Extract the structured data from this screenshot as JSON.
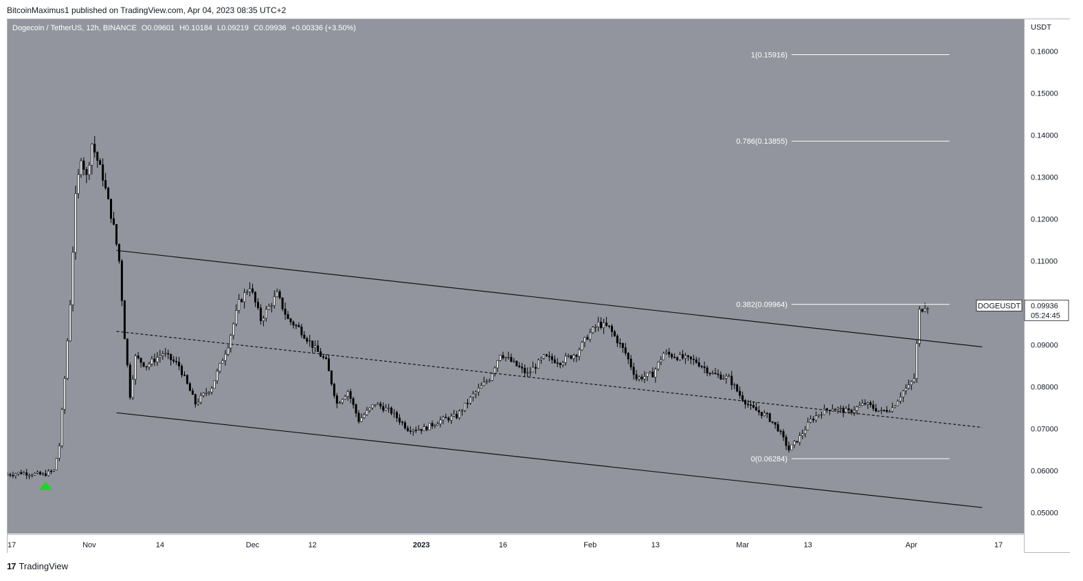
{
  "publisher": "BitcoinMaximus1 published on TradingView.com, Apr 04, 2023 08:35 UTC+2",
  "symbol": {
    "title": "Dogecoin / TetherUS, 12h, BINANCE",
    "open": "O0.09601",
    "high": "H0.10184",
    "low": "L0.09219",
    "close": "C0.09936",
    "change": "+0.00336 (+3.50%)"
  },
  "axis_unit": "USDT",
  "price_tag": {
    "symbol": "DOGEUSDT",
    "price": "0.09936",
    "countdown": "05:24:45"
  },
  "footer": {
    "logo": "17",
    "brand": "TradingView"
  },
  "colors": {
    "background": "#92959d",
    "candle": "#000000",
    "fib_line": "#ffffff",
    "marker": "#22d12a"
  },
  "chart_data": {
    "type": "candlestick",
    "title": "Dogecoin / TetherUS, 12h, BINANCE",
    "ylabel": "USDT",
    "ylim": [
      0.045,
      0.1676
    ],
    "y_ticks": [
      "0.05000",
      "0.06000",
      "0.07000",
      "0.08000",
      "0.09000",
      "0.10000",
      "0.11000",
      "0.12000",
      "0.13000",
      "0.14000",
      "0.15000",
      "0.16000"
    ],
    "x_ticks": [
      "17",
      "Nov",
      "14",
      "Dec",
      "12",
      "2023",
      "16",
      "Feb",
      "13",
      "Mar",
      "13",
      "Apr",
      "17"
    ],
    "x_tick_values": [
      "2022-10-17",
      "2022-11-01",
      "2022-11-14",
      "2022-12-01",
      "2022-12-12",
      "2023-01-01",
      "2023-01-16",
      "2023-02-01",
      "2023-02-13",
      "2023-03-01",
      "2023-03-13",
      "2023-04-01",
      "2023-04-17"
    ],
    "fibonacci": [
      {
        "label": "1(0.15916)",
        "value": 0.15916
      },
      {
        "label": "0.786(0.13855)",
        "value": 0.13855
      },
      {
        "label": "0.382(0.09964)",
        "value": 0.09964
      },
      {
        "label": "0(0.06284)",
        "value": 0.06284
      }
    ],
    "fib_range": {
      "start": "2023-03-10",
      "end": "2023-04-08"
    },
    "channel": {
      "upper": {
        "start": [
          "2022-11-06",
          0.1125
        ],
        "end": [
          "2023-04-14",
          0.0895
        ]
      },
      "middle": {
        "start": [
          "2022-11-06",
          0.0932
        ],
        "end": [
          "2023-04-14",
          0.0703
        ]
      },
      "lower": {
        "start": [
          "2022-11-06",
          0.0738
        ],
        "end": [
          "2023-04-14",
          0.0512
        ]
      }
    },
    "buy_signal": {
      "date": "2022-10-24",
      "value": 0.0575
    },
    "price_series": [
      [
        "2022-10-17",
        0.059
      ],
      [
        "2022-10-20",
        0.0595
      ],
      [
        "2022-10-24",
        0.059
      ],
      [
        "2022-10-26",
        0.06
      ],
      [
        "2022-10-27",
        0.066
      ],
      [
        "2022-10-28",
        0.082
      ],
      [
        "2022-10-29",
        0.1
      ],
      [
        "2022-10-30",
        0.125
      ],
      [
        "2022-10-31",
        0.135
      ],
      [
        "2022-11-01",
        0.13
      ],
      [
        "2022-11-02",
        0.138
      ],
      [
        "2022-11-04",
        0.13
      ],
      [
        "2022-11-06",
        0.118
      ],
      [
        "2022-11-07",
        0.11
      ],
      [
        "2022-11-08",
        0.092
      ],
      [
        "2022-11-09",
        0.078
      ],
      [
        "2022-11-10",
        0.087
      ],
      [
        "2022-11-12",
        0.085
      ],
      [
        "2022-11-15",
        0.088
      ],
      [
        "2022-11-18",
        0.085
      ],
      [
        "2022-11-21",
        0.076
      ],
      [
        "2022-11-24",
        0.08
      ],
      [
        "2022-11-27",
        0.09
      ],
      [
        "2022-11-29",
        0.1
      ],
      [
        "2022-12-01",
        0.104
      ],
      [
        "2022-12-03",
        0.096
      ],
      [
        "2022-12-06",
        0.102
      ],
      [
        "2022-12-08",
        0.096
      ],
      [
        "2022-12-10",
        0.094
      ],
      [
        "2022-12-13",
        0.089
      ],
      [
        "2022-12-15",
        0.086
      ],
      [
        "2022-12-17",
        0.076
      ],
      [
        "2022-12-19",
        0.079
      ],
      [
        "2022-12-21",
        0.072
      ],
      [
        "2022-12-24",
        0.076
      ],
      [
        "2022-12-27",
        0.074
      ],
      [
        "2022-12-30",
        0.07
      ],
      [
        "2023-01-02",
        0.07
      ],
      [
        "2023-01-05",
        0.072
      ],
      [
        "2023-01-08",
        0.073
      ],
      [
        "2023-01-11",
        0.078
      ],
      [
        "2023-01-14",
        0.082
      ],
      [
        "2023-01-16",
        0.088
      ],
      [
        "2023-01-19",
        0.085
      ],
      [
        "2023-01-21",
        0.083
      ],
      [
        "2023-01-24",
        0.087
      ],
      [
        "2023-01-27",
        0.086
      ],
      [
        "2023-01-30",
        0.088
      ],
      [
        "2023-02-01",
        0.092
      ],
      [
        "2023-02-03",
        0.095
      ],
      [
        "2023-02-05",
        0.094
      ],
      [
        "2023-02-08",
        0.088
      ],
      [
        "2023-02-10",
        0.082
      ],
      [
        "2023-02-13",
        0.083
      ],
      [
        "2023-02-15",
        0.088
      ],
      [
        "2023-02-18",
        0.087
      ],
      [
        "2023-02-21",
        0.086
      ],
      [
        "2023-02-24",
        0.083
      ],
      [
        "2023-02-27",
        0.082
      ],
      [
        "2023-03-01",
        0.078
      ],
      [
        "2023-03-03",
        0.075
      ],
      [
        "2023-03-06",
        0.073
      ],
      [
        "2023-03-08",
        0.07
      ],
      [
        "2023-03-10",
        0.065
      ],
      [
        "2023-03-12",
        0.068
      ],
      [
        "2023-03-14",
        0.072
      ],
      [
        "2023-03-16",
        0.074
      ],
      [
        "2023-03-18",
        0.075
      ],
      [
        "2023-03-21",
        0.074
      ],
      [
        "2023-03-24",
        0.076
      ],
      [
        "2023-03-27",
        0.074
      ],
      [
        "2023-03-29",
        0.075
      ],
      [
        "2023-03-31",
        0.079
      ],
      [
        "2023-04-01",
        0.08
      ],
      [
        "2023-04-02",
        0.082
      ],
      [
        "2023-04-03",
        0.098
      ],
      [
        "2023-04-04",
        0.0994
      ]
    ]
  }
}
